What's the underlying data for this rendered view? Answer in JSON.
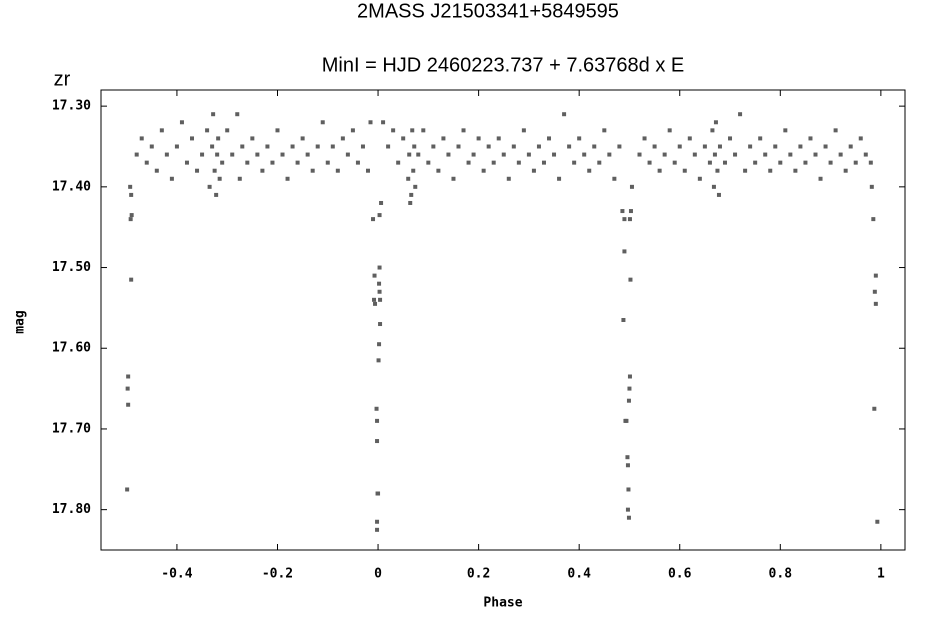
{
  "chart_data": {
    "type": "scatter",
    "title": "2MASS J21503341+5849595",
    "subtitle": "MinI = HJD 2460223.737 + 7.63768d x E",
    "annotation": "zr",
    "x_label": "Phase",
    "y_label": "mag",
    "color": "#5f5f5f",
    "y_inverted": true,
    "xlim": [
      -0.551,
      1.048
    ],
    "ylim": [
      17.28,
      17.85
    ],
    "xticks": [
      -0.4,
      -0.2,
      0,
      0.2,
      0.4,
      0.6,
      0.8,
      1
    ],
    "yticks": [
      {
        "value": 17.3,
        "label": "17.30"
      },
      {
        "value": 17.4,
        "label": "17.40"
      },
      {
        "value": 17.5,
        "label": "17.50"
      },
      {
        "value": 17.6,
        "label": "17.60"
      },
      {
        "value": 17.7,
        "label": "17.70"
      },
      {
        "value": 17.8,
        "label": "17.80"
      }
    ],
    "x": [
      -0.493,
      -0.491,
      -0.49,
      -0.492,
      -0.491,
      -0.497,
      -0.498,
      -0.497,
      -0.499,
      -0.01,
      -0.007,
      -0.008,
      -0.006,
      0.003,
      0.002,
      0.003,
      0.004,
      0.004,
      0.002,
      0.001,
      -0.003,
      -0.002,
      -0.002,
      -0.001,
      0.0,
      -0.002,
      -0.002,
      0.006,
      0.003,
      0.486,
      0.49,
      0.49,
      0.488,
      0.492,
      0.494,
      0.496,
      0.497,
      0.498,
      0.497,
      0.499,
      0.5,
      0.501,
      0.499,
      0.502,
      0.501,
      0.503,
      0.505,
      0.985,
      0.99,
      0.988,
      0.99,
      0.987,
      0.993,
      0.982,
      -0.48,
      -0.47,
      -0.46,
      -0.45,
      -0.44,
      -0.43,
      -0.42,
      -0.41,
      -0.4,
      -0.39,
      -0.38,
      -0.37,
      -0.36,
      -0.35,
      -0.34,
      -0.335,
      -0.33,
      -0.328,
      -0.325,
      -0.322,
      -0.32,
      -0.318,
      -0.315,
      -0.31,
      -0.3,
      -0.29,
      -0.28,
      -0.275,
      -0.27,
      -0.26,
      -0.25,
      -0.24,
      -0.23,
      -0.22,
      -0.21,
      -0.2,
      -0.19,
      -0.18,
      -0.17,
      -0.16,
      -0.15,
      -0.14,
      -0.13,
      -0.12,
      -0.11,
      -0.1,
      -0.09,
      -0.08,
      -0.07,
      -0.06,
      -0.05,
      -0.04,
      -0.03,
      -0.02,
      -0.015,
      0.01,
      0.02,
      0.03,
      0.04,
      0.05,
      0.06,
      0.062,
      0.064,
      0.066,
      0.068,
      0.07,
      0.072,
      0.074,
      0.08,
      0.09,
      0.1,
      0.11,
      0.12,
      0.13,
      0.14,
      0.15,
      0.16,
      0.17,
      0.18,
      0.19,
      0.2,
      0.21,
      0.22,
      0.23,
      0.24,
      0.25,
      0.26,
      0.27,
      0.28,
      0.29,
      0.3,
      0.31,
      0.32,
      0.33,
      0.34,
      0.35,
      0.36,
      0.37,
      0.38,
      0.39,
      0.4,
      0.41,
      0.42,
      0.43,
      0.44,
      0.45,
      0.46,
      0.47,
      0.48,
      0.52,
      0.53,
      0.54,
      0.55,
      0.56,
      0.57,
      0.58,
      0.59,
      0.6,
      0.61,
      0.62,
      0.63,
      0.64,
      0.65,
      0.66,
      0.665,
      0.668,
      0.67,
      0.672,
      0.675,
      0.678,
      0.68,
      0.69,
      0.7,
      0.71,
      0.72,
      0.73,
      0.74,
      0.75,
      0.76,
      0.77,
      0.78,
      0.79,
      0.8,
      0.81,
      0.82,
      0.83,
      0.84,
      0.85,
      0.86,
      0.87,
      0.88,
      0.89,
      0.9,
      0.91,
      0.92,
      0.93,
      0.94,
      0.95,
      0.96,
      0.97,
      0.98
    ],
    "values": [
      17.4,
      17.41,
      17.435,
      17.44,
      17.515,
      17.635,
      17.65,
      17.67,
      17.775,
      17.44,
      17.51,
      17.54,
      17.545,
      17.5,
      17.52,
      17.53,
      17.54,
      17.57,
      17.595,
      17.615,
      17.675,
      17.69,
      17.715,
      17.78,
      17.78,
      17.815,
      17.825,
      17.42,
      17.435,
      17.43,
      17.44,
      17.48,
      17.565,
      17.69,
      17.69,
      17.735,
      17.745,
      17.775,
      17.8,
      17.81,
      17.65,
      17.635,
      17.665,
      17.515,
      17.44,
      17.43,
      17.4,
      17.44,
      17.51,
      17.53,
      17.545,
      17.675,
      17.815,
      17.4,
      17.36,
      17.34,
      17.37,
      17.35,
      17.38,
      17.33,
      17.36,
      17.39,
      17.35,
      17.32,
      17.37,
      17.34,
      17.38,
      17.36,
      17.33,
      17.4,
      17.35,
      17.31,
      17.38,
      17.41,
      17.36,
      17.34,
      17.39,
      17.37,
      17.33,
      17.36,
      17.31,
      17.39,
      17.35,
      17.37,
      17.34,
      17.36,
      17.38,
      17.35,
      17.37,
      17.33,
      17.36,
      17.39,
      17.35,
      17.37,
      17.34,
      17.36,
      17.38,
      17.35,
      17.32,
      17.37,
      17.35,
      17.38,
      17.34,
      17.36,
      17.33,
      17.37,
      17.35,
      17.38,
      17.32,
      17.32,
      17.35,
      17.33,
      17.37,
      17.34,
      17.39,
      17.36,
      17.42,
      17.41,
      17.33,
      17.38,
      17.35,
      17.4,
      17.36,
      17.33,
      17.37,
      17.35,
      17.38,
      17.34,
      17.36,
      17.39,
      17.35,
      17.33,
      17.37,
      17.36,
      17.34,
      17.38,
      17.35,
      17.37,
      17.34,
      17.36,
      17.39,
      17.35,
      17.37,
      17.33,
      17.36,
      17.38,
      17.35,
      17.37,
      17.34,
      17.36,
      17.39,
      17.31,
      17.35,
      17.37,
      17.34,
      17.36,
      17.38,
      17.35,
      17.37,
      17.33,
      17.36,
      17.39,
      17.35,
      17.36,
      17.34,
      17.37,
      17.35,
      17.38,
      17.36,
      17.33,
      17.37,
      17.35,
      17.38,
      17.34,
      17.36,
      17.39,
      17.35,
      17.37,
      17.33,
      17.4,
      17.36,
      17.32,
      17.38,
      17.41,
      17.35,
      17.37,
      17.34,
      17.36,
      17.31,
      17.38,
      17.35,
      17.37,
      17.34,
      17.36,
      17.38,
      17.35,
      17.37,
      17.33,
      17.36,
      17.38,
      17.35,
      17.37,
      17.34,
      17.36,
      17.39,
      17.35,
      17.37,
      17.33,
      17.36,
      17.38,
      17.35,
      17.37,
      17.34,
      17.36,
      17.37
    ]
  }
}
